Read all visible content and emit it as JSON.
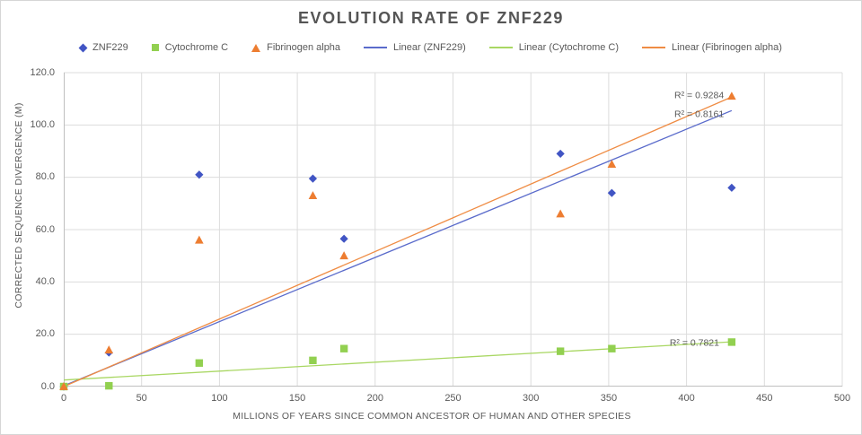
{
  "title": "EVOLUTION RATE OF ZNF229",
  "legend": {
    "items": [
      {
        "label": "ZNF229",
        "marker": "diamond",
        "color": "#4155C4"
      },
      {
        "label": "Cytochrome C",
        "marker": "square",
        "color": "#92D050"
      },
      {
        "label": "Fibrinogen alpha",
        "marker": "triangle",
        "color": "#ED7D31"
      },
      {
        "label": "Linear (ZNF229)",
        "marker": "line",
        "color": "#5A6BCB"
      },
      {
        "label": "Linear (Cytochrome C)",
        "marker": "line",
        "color": "#A9D763"
      },
      {
        "label": "Linear (Fibrinogen alpha)",
        "marker": "line",
        "color": "#EF8C44"
      }
    ]
  },
  "chart_data": {
    "type": "scatter",
    "title": "EVOLUTION RATE OF ZNF229",
    "xlabel": "MILLIONS OF YEARS SINCE COMMON ANCESTOR OF HUMAN AND OTHER SPECIES",
    "ylabel": "CORRECTED SEQUENCE DIVERGENCE (M)",
    "xlim": [
      0,
      500
    ],
    "ylim": [
      0,
      120
    ],
    "grid": true,
    "legend_position": "top",
    "x_ticks": [
      0,
      50,
      100,
      150,
      200,
      250,
      300,
      350,
      400,
      450,
      500
    ],
    "y_ticks": [
      0,
      20,
      40,
      60,
      80,
      100,
      120
    ],
    "y_tick_labels": [
      "0.0",
      "20.0",
      "40.0",
      "60.0",
      "80.0",
      "100.0",
      "120.0"
    ],
    "grid_color": "#dcdcdc",
    "axis_color": "#bfbfbf",
    "series": [
      {
        "name": "ZNF229",
        "marker": "diamond",
        "color": "#4155C4",
        "points": [
          [
            0,
            0
          ],
          [
            29,
            13
          ],
          [
            87,
            81
          ],
          [
            160,
            79.5
          ],
          [
            180,
            56.5
          ],
          [
            319,
            89
          ],
          [
            352,
            74
          ],
          [
            429,
            76
          ]
        ]
      },
      {
        "name": "Cytochrome C",
        "marker": "square",
        "color": "#92D050",
        "points": [
          [
            0,
            0
          ],
          [
            29,
            0.3
          ],
          [
            87,
            9
          ],
          [
            160,
            10
          ],
          [
            180,
            14.5
          ],
          [
            319,
            13.5
          ],
          [
            352,
            14.5
          ],
          [
            429,
            17
          ]
        ]
      },
      {
        "name": "Fibrinogen alpha",
        "marker": "triangle",
        "color": "#ED7D31",
        "points": [
          [
            0,
            0
          ],
          [
            29,
            14
          ],
          [
            87,
            56
          ],
          [
            160,
            73
          ],
          [
            180,
            50
          ],
          [
            319,
            66
          ],
          [
            352,
            85
          ],
          [
            429,
            111
          ]
        ]
      }
    ],
    "trendlines": [
      {
        "name": "Linear (ZNF229)",
        "color": "#5A6BCB",
        "from": [
          0,
          0.3
        ],
        "to": [
          429,
          105.5
        ],
        "r2": 0.8161
      },
      {
        "name": "Linear (Cytochrome C)",
        "color": "#A9D763",
        "from": [
          0,
          2.5
        ],
        "to": [
          429,
          17.1
        ],
        "r2": 0.7821
      },
      {
        "name": "Linear (Fibrinogen alpha)",
        "color": "#EF8C44",
        "from": [
          0,
          0
        ],
        "to": [
          429,
          110.7
        ],
        "r2": 0.9284
      }
    ],
    "annotations": [
      {
        "text": "R² = 0.9284",
        "x": 424,
        "y": 111.5,
        "align": "end"
      },
      {
        "text": "R² = 0.8161",
        "x": 424,
        "y": 104.3,
        "align": "end"
      },
      {
        "text": "R² = 0.7821",
        "x": 421,
        "y": 16.8,
        "align": "end"
      }
    ]
  }
}
